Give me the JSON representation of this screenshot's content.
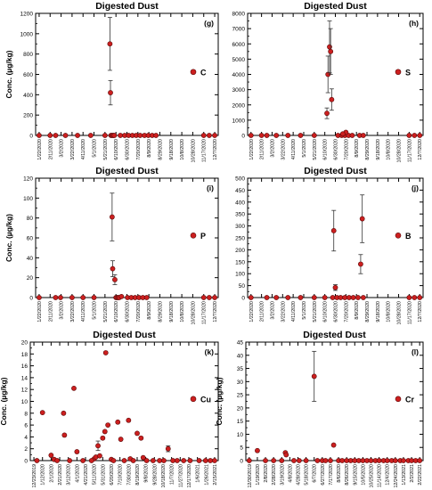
{
  "chart_data": [
    {
      "type": "scatter",
      "title": "Digested Dust",
      "panel": "(g)",
      "legend": "C",
      "ylabel": "Conc. (µg/kg)",
      "xlabel": "",
      "ylim": [
        0,
        1200
      ],
      "yticks": [
        0,
        200,
        400,
        600,
        800,
        1000,
        1200
      ],
      "xticks": [
        "1/22/2020",
        "2/11/2020",
        "3/2/2020",
        "3/22/2020",
        "4/11/2020",
        "5/1/2020",
        "5/21/2020",
        "6/10/2020",
        "6/30/2020",
        "7/20/2020",
        "8/9/2020",
        "8/29/2020",
        "9/18/2020",
        "10/8/2020",
        "10/28/2020",
        "11/17/2020",
        "12/7/2020"
      ],
      "legend_position": "right",
      "points": [
        {
          "x": "1/22/2020",
          "y": 0
        },
        {
          "x": "2/11/2020",
          "y": 0
        },
        {
          "x": "2/21/2020",
          "y": 0
        },
        {
          "x": "3/10/2020",
          "y": 0
        },
        {
          "x": "4/1/2020",
          "y": 0
        },
        {
          "x": "4/25/2020",
          "y": 0
        },
        {
          "x": "5/21/2020",
          "y": 0
        },
        {
          "x": "6/1/2020",
          "y": 0
        },
        {
          "x": "6/3/2020",
          "y": 0
        },
        {
          "x": "6/5/2020",
          "y": 0
        },
        {
          "x": "6/7/2020",
          "y": 0
        },
        {
          "x": "6/18/2020",
          "y": 0
        },
        {
          "x": "6/26/2020",
          "y": 0
        },
        {
          "x": "7/3/2020",
          "y": 0
        },
        {
          "x": "7/10/2020",
          "y": 0
        },
        {
          "x": "7/17/2020",
          "y": 0
        },
        {
          "x": "7/24/2020",
          "y": 0
        },
        {
          "x": "8/1/2020",
          "y": 0
        },
        {
          "x": "8/8/2020",
          "y": 0
        },
        {
          "x": "8/15/2020",
          "y": 0
        },
        {
          "x": "8/22/2020",
          "y": 0
        },
        {
          "x": "11/17/2020",
          "y": 0
        },
        {
          "x": "11/27/2020",
          "y": 0
        },
        {
          "x": "12/7/2020",
          "y": 0
        },
        {
          "x": "5/30/2020",
          "y": 900,
          "err": 260
        },
        {
          "x": "5/31/2020",
          "y": 420,
          "err": 120
        }
      ]
    },
    {
      "type": "scatter",
      "title": "Digested Dust",
      "panel": "(h)",
      "legend": "S",
      "ylabel": "",
      "xlabel": "",
      "ylim": [
        0,
        8000
      ],
      "yticks": [
        0,
        1000,
        2000,
        3000,
        4000,
        5000,
        6000,
        7000,
        8000
      ],
      "xticks": [
        "1/22/2020",
        "2/11/2020",
        "3/2/2020",
        "3/22/2020",
        "4/11/2020",
        "5/1/2020",
        "5/21/2020",
        "6/10/2020",
        "6/30/2020",
        "7/20/2020",
        "8/9/2020",
        "8/29/2020",
        "9/18/2020",
        "10/8/2020",
        "10/28/2020",
        "11/17/2020",
        "12/7/2020"
      ],
      "legend_position": "right",
      "points": [
        {
          "x": "1/22/2020",
          "y": 0
        },
        {
          "x": "2/11/2020",
          "y": 0
        },
        {
          "x": "2/21/2020",
          "y": 0
        },
        {
          "x": "3/10/2020",
          "y": 0
        },
        {
          "x": "4/1/2020",
          "y": 0
        },
        {
          "x": "4/25/2020",
          "y": 0
        },
        {
          "x": "5/21/2020",
          "y": 0
        },
        {
          "x": "7/5/2020",
          "y": 0
        },
        {
          "x": "7/12/2020",
          "y": 0
        },
        {
          "x": "7/18/2020",
          "y": 0
        },
        {
          "x": "7/25/2020",
          "y": 0
        },
        {
          "x": "8/1/2020",
          "y": 0
        },
        {
          "x": "8/15/2020",
          "y": 0
        },
        {
          "x": "8/22/2020",
          "y": 0
        },
        {
          "x": "11/17/2020",
          "y": 0
        },
        {
          "x": "11/27/2020",
          "y": 0
        },
        {
          "x": "12/7/2020",
          "y": 0
        },
        {
          "x": "7/20/2020",
          "y": 200
        },
        {
          "x": "7/14/2020",
          "y": 100
        },
        {
          "x": "6/14/2020",
          "y": 1450,
          "err": 350
        },
        {
          "x": "6/16/2020",
          "y": 4000,
          "err": 1200
        },
        {
          "x": "6/19/2020",
          "y": 5800,
          "err": 1700
        },
        {
          "x": "6/21/2020",
          "y": 5500,
          "err": 1500
        },
        {
          "x": "6/23/2020",
          "y": 2350,
          "err": 700
        }
      ]
    },
    {
      "type": "scatter",
      "title": "Digested Dust",
      "panel": "(i)",
      "legend": "P",
      "ylabel": "Conc. (µg/kg)",
      "xlabel": "",
      "ylim": [
        0,
        120
      ],
      "yticks": [
        0,
        20,
        40,
        60,
        80,
        100,
        120
      ],
      "xticks": [
        "1/22/2020",
        "2/11/2020",
        "3/2/2020",
        "3/22/2020",
        "4/11/2020",
        "5/1/2020",
        "5/21/2020",
        "6/10/2020",
        "6/30/2020",
        "7/20/2020",
        "8/9/2020",
        "8/29/2020",
        "9/18/2020",
        "10/8/2020",
        "10/28/2020",
        "11/17/2020",
        "12/7/2020"
      ],
      "legend_position": "right",
      "points": [
        {
          "x": "1/22/2020",
          "y": 0
        },
        {
          "x": "2/21/2020",
          "y": 0
        },
        {
          "x": "3/1/2020",
          "y": 0
        },
        {
          "x": "3/22/2020",
          "y": 0
        },
        {
          "x": "4/11/2020",
          "y": 0
        },
        {
          "x": "5/1/2020",
          "y": 0
        },
        {
          "x": "6/10/2020",
          "y": 0
        },
        {
          "x": "6/12/2020",
          "y": 0
        },
        {
          "x": "6/14/2020",
          "y": 0
        },
        {
          "x": "6/16/2020",
          "y": 0
        },
        {
          "x": "7/1/2020",
          "y": 0
        },
        {
          "x": "7/8/2020",
          "y": 0
        },
        {
          "x": "7/15/2020",
          "y": 0
        },
        {
          "x": "7/22/2020",
          "y": 0
        },
        {
          "x": "7/29/2020",
          "y": 0
        },
        {
          "x": "8/5/2020",
          "y": 0
        },
        {
          "x": "11/17/2020",
          "y": 0
        },
        {
          "x": "11/27/2020",
          "y": 0
        },
        {
          "x": "12/7/2020",
          "y": 0
        },
        {
          "x": "6/3/2020",
          "y": 81,
          "err": 24
        },
        {
          "x": "6/4/2020",
          "y": 29,
          "err": 8
        },
        {
          "x": "6/8/2020",
          "y": 18,
          "err": 5
        },
        {
          "x": "6/20/2020",
          "y": 1
        }
      ]
    },
    {
      "type": "scatter",
      "title": "Digested Dust",
      "panel": "(j)",
      "legend": "B",
      "ylabel": "",
      "xlabel": "",
      "ylim": [
        0,
        500
      ],
      "yticks": [
        0,
        50,
        100,
        150,
        200,
        250,
        300,
        350,
        400,
        450,
        500
      ],
      "xticks": [
        "1/22/2020",
        "2/11/2020",
        "3/2/2020",
        "3/22/2020",
        "4/11/2020",
        "5/1/2020",
        "5/21/2020",
        "6/10/2020",
        "6/30/2020",
        "7/20/2020",
        "8/9/2020",
        "8/29/2020",
        "9/18/2020",
        "10/8/2020",
        "10/28/2020",
        "11/17/2020",
        "12/7/2020"
      ],
      "legend_position": "right",
      "points": [
        {
          "x": "1/22/2020",
          "y": 0
        },
        {
          "x": "2/21/2020",
          "y": 0
        },
        {
          "x": "3/10/2020",
          "y": 0
        },
        {
          "x": "4/1/2020",
          "y": 0
        },
        {
          "x": "4/25/2020",
          "y": 0
        },
        {
          "x": "5/21/2020",
          "y": 0
        },
        {
          "x": "6/10/2020",
          "y": 0
        },
        {
          "x": "6/25/2020",
          "y": 0
        },
        {
          "x": "7/3/2020",
          "y": 0
        },
        {
          "x": "7/10/2020",
          "y": 0
        },
        {
          "x": "7/18/2020",
          "y": 0
        },
        {
          "x": "7/26/2020",
          "y": 0
        },
        {
          "x": "8/3/2020",
          "y": 0
        },
        {
          "x": "8/12/2020",
          "y": 0
        },
        {
          "x": "8/22/2020",
          "y": 0
        },
        {
          "x": "11/17/2020",
          "y": 0
        },
        {
          "x": "11/27/2020",
          "y": 0
        },
        {
          "x": "12/7/2020",
          "y": 0
        },
        {
          "x": "6/27/2020",
          "y": 280,
          "err": 85
        },
        {
          "x": "6/30/2020",
          "y": 42,
          "err": 12
        },
        {
          "x": "8/17/2020",
          "y": 140,
          "err": 40
        },
        {
          "x": "8/20/2020",
          "y": 330,
          "err": 100
        }
      ]
    },
    {
      "type": "scatter",
      "title": "Digested Dust",
      "panel": "(k)",
      "legend": "Cu",
      "ylabel": "Conc. (µg/kg)",
      "xlabel": "",
      "ylim": [
        0,
        20
      ],
      "yticks": [
        0,
        2,
        4,
        6,
        8,
        10,
        12,
        14,
        16,
        18,
        20
      ],
      "xticks": [
        "12/23/2019",
        "1/12/2020",
        "2/1/2020",
        "2/21/2020",
        "3/12/2020",
        "4/1/2020",
        "4/21/2020",
        "5/11/2020",
        "5/31/2020",
        "6/20/2020",
        "7/10/2020",
        "7/30/2020",
        "8/19/2020",
        "9/8/2020",
        "9/28/2020",
        "10/18/2020",
        "11/7/2020",
        "11/27/2020",
        "12/17/2020",
        "1/6/2021",
        "1/26/2021",
        "2/15/2021"
      ],
      "legend_position": "right",
      "points": [
        {
          "x": "1/12/2020",
          "y": 8.1
        },
        {
          "x": "2/1/2020",
          "y": 0.9
        },
        {
          "x": "2/8/2020",
          "y": 0.2
        },
        {
          "x": "3/1/2020",
          "y": 8
        },
        {
          "x": "3/3/2020",
          "y": 4.3
        },
        {
          "x": "3/25/2020",
          "y": 12.2
        },
        {
          "x": "4/1/2020",
          "y": 1.5
        },
        {
          "x": "5/11/2020",
          "y": 0.3
        },
        {
          "x": "5/15/2020",
          "y": 0.6
        },
        {
          "x": "5/20/2020",
          "y": 2.5,
          "err": 0.8
        },
        {
          "x": "5/24/2020",
          "y": 0.8
        },
        {
          "x": "5/31/2020",
          "y": 3.8
        },
        {
          "x": "6/5/2020",
          "y": 4.9
        },
        {
          "x": "6/7/2020",
          "y": 18.2
        },
        {
          "x": "6/12/2020",
          "y": 6
        },
        {
          "x": "6/20/2020",
          "y": 0.2
        },
        {
          "x": "7/5/2020",
          "y": 6.5
        },
        {
          "x": "7/12/2020",
          "y": 3.6
        },
        {
          "x": "7/30/2020",
          "y": 6.8
        },
        {
          "x": "8/3/2020",
          "y": 0.3
        },
        {
          "x": "8/19/2020",
          "y": 4.6
        },
        {
          "x": "8/28/2020",
          "y": 3.8
        },
        {
          "x": "9/2/2020",
          "y": 0.5
        },
        {
          "x": "10/30/2020",
          "y": 2,
          "err": 0.5
        },
        {
          "x": "12/30/2019",
          "y": 0
        },
        {
          "x": "2/15/2020",
          "y": 0
        },
        {
          "x": "3/15/2020",
          "y": 0
        },
        {
          "x": "4/15/2020",
          "y": 0
        },
        {
          "x": "5/5/2020",
          "y": 0
        },
        {
          "x": "6/25/2020",
          "y": 0
        },
        {
          "x": "7/20/2020",
          "y": 0
        },
        {
          "x": "8/10/2020",
          "y": 0
        },
        {
          "x": "9/10/2020",
          "y": 0
        },
        {
          "x": "9/25/2020",
          "y": 0
        },
        {
          "x": "10/10/2020",
          "y": 0
        },
        {
          "x": "10/20/2020",
          "y": 0
        },
        {
          "x": "11/10/2020",
          "y": 0
        },
        {
          "x": "11/20/2020",
          "y": 0
        },
        {
          "x": "12/5/2020",
          "y": 0
        },
        {
          "x": "12/20/2020",
          "y": 0
        },
        {
          "x": "1/10/2021",
          "y": 0
        },
        {
          "x": "1/25/2021",
          "y": 0
        },
        {
          "x": "2/5/2021",
          "y": 0
        },
        {
          "x": "2/15/2021",
          "y": 0
        }
      ]
    },
    {
      "type": "scatter",
      "title": "Digested Dust",
      "panel": "(l)",
      "legend": "Cr",
      "ylabel": "Conc. (µg/kg)",
      "xlabel": "",
      "ylim": [
        0,
        45
      ],
      "yticks": [
        0,
        5,
        10,
        15,
        20,
        25,
        30,
        35,
        40,
        45
      ],
      "xticks": [
        "12/30/2019",
        "1/19/2020",
        "2/8/2020",
        "2/28/2020",
        "3/19/2020",
        "4/8/2020",
        "4/28/2020",
        "5/18/2020",
        "6/7/2020",
        "6/27/2020",
        "7/17/2020",
        "8/6/2020",
        "8/26/2020",
        "9/15/2020",
        "10/5/2020",
        "10/25/2020",
        "11/14/2020",
        "12/4/2020",
        "12/24/2020",
        "1/13/2021",
        "2/2/2021",
        "2/22/2021"
      ],
      "legend_position": "right",
      "points": [
        {
          "x": "1/19/2020",
          "y": 3.8
        },
        {
          "x": "3/28/2020",
          "y": 3
        },
        {
          "x": "3/30/2020",
          "y": 2.2
        },
        {
          "x": "6/7/2020",
          "y": 32,
          "err": 9.5
        },
        {
          "x": "7/25/2020",
          "y": 5.9
        },
        {
          "x": "12/30/2019",
          "y": 0
        },
        {
          "x": "2/8/2020",
          "y": 0
        },
        {
          "x": "2/28/2020",
          "y": 0
        },
        {
          "x": "3/19/2020",
          "y": 0
        },
        {
          "x": "4/18/2020",
          "y": 0
        },
        {
          "x": "5/1/2020",
          "y": 0
        },
        {
          "x": "5/18/2020",
          "y": 0
        },
        {
          "x": "6/15/2020",
          "y": 0
        },
        {
          "x": "6/27/2020",
          "y": 0
        },
        {
          "x": "7/5/2020",
          "y": 0
        },
        {
          "x": "7/17/2020",
          "y": 0
        },
        {
          "x": "8/6/2020",
          "y": 0
        },
        {
          "x": "8/15/2020",
          "y": 0
        },
        {
          "x": "8/26/2020",
          "y": 0
        },
        {
          "x": "9/5/2020",
          "y": 0
        },
        {
          "x": "9/15/2020",
          "y": 0
        },
        {
          "x": "9/25/2020",
          "y": 0
        },
        {
          "x": "10/5/2020",
          "y": 0
        },
        {
          "x": "10/15/2020",
          "y": 0
        },
        {
          "x": "10/25/2020",
          "y": 0
        },
        {
          "x": "11/5/2020",
          "y": 0
        },
        {
          "x": "11/14/2020",
          "y": 0
        },
        {
          "x": "11/25/2020",
          "y": 0
        },
        {
          "x": "12/4/2020",
          "y": 0
        },
        {
          "x": "12/15/2020",
          "y": 0
        },
        {
          "x": "12/24/2020",
          "y": 0
        },
        {
          "x": "1/5/2021",
          "y": 0
        },
        {
          "x": "1/13/2021",
          "y": 0
        },
        {
          "x": "1/25/2021",
          "y": 0
        },
        {
          "x": "2/2/2021",
          "y": 0
        },
        {
          "x": "2/12/2021",
          "y": 0
        },
        {
          "x": "2/22/2021",
          "y": 0
        }
      ]
    }
  ],
  "colors": {
    "marker_fill": "#cc1f1f",
    "marker_stroke": "#5a0a0a",
    "axis": "#000000"
  }
}
